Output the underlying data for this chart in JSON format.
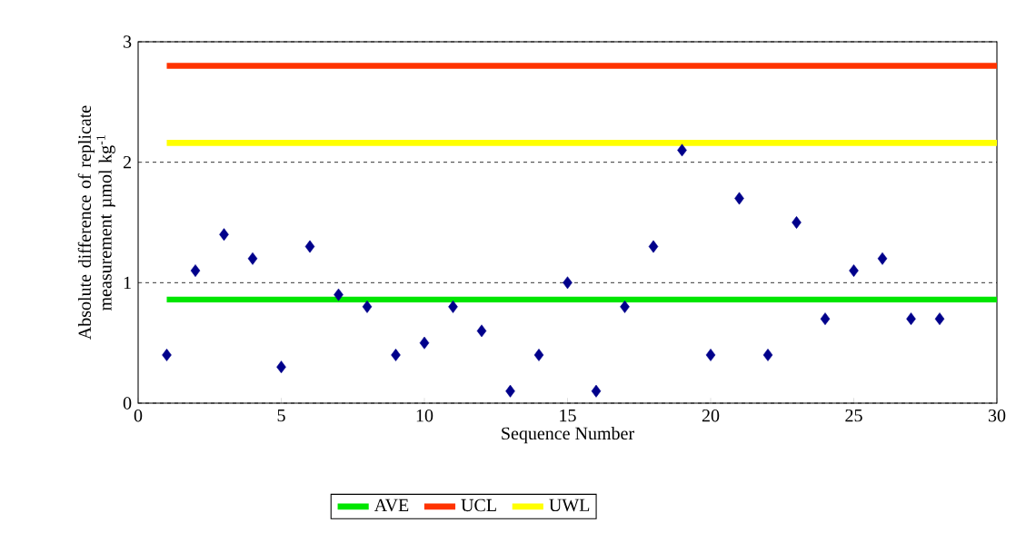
{
  "chart_data": {
    "type": "scatter",
    "xlabel": "Sequence Number",
    "ylabel": "Absolute difference of replicate measurement µmol kg$^{-1}$",
    "xlim": [
      0,
      30
    ],
    "ylim": [
      0,
      3
    ],
    "xticks": [
      0,
      5,
      10,
      15,
      20,
      25,
      30
    ],
    "yticks": [
      0,
      1,
      2,
      3
    ],
    "grid": "y",
    "legend": "bottom",
    "series": [
      {
        "marker": "diamond",
        "color": "#00008b",
        "x": [
          1,
          2,
          3,
          4,
          5,
          6,
          7,
          8,
          9,
          10,
          11,
          12,
          13,
          14,
          15,
          16,
          17,
          18,
          19,
          20,
          21,
          22,
          23,
          24,
          25,
          26,
          27,
          28
        ],
        "values": [
          0.4,
          1.1,
          1.4,
          1.2,
          0.3,
          1.3,
          0.9,
          0.8,
          0.4,
          0.5,
          0.8,
          0.6,
          0.1,
          0.4,
          1.0,
          0.1,
          0.8,
          1.3,
          2.1,
          0.4,
          1.7,
          0.4,
          1.5,
          0.7,
          1.1,
          1.2,
          0.7,
          0.7
        ]
      },
      {
        "type": "line",
        "marker": "none",
        "name": "AVE",
        "color": "#00e600",
        "x": [
          1,
          30
        ],
        "values": [
          0.86,
          0.86
        ]
      },
      {
        "type": "line",
        "marker": "none",
        "name": "UCL",
        "color": "#ff3300",
        "x": [
          1,
          30
        ],
        "values": [
          2.8,
          2.8
        ]
      },
      {
        "type": "line",
        "marker": "none",
        "name": "UWL",
        "color": "#ffff00",
        "x": [
          1,
          30
        ],
        "values": [
          2.16,
          2.16
        ]
      }
    ]
  }
}
